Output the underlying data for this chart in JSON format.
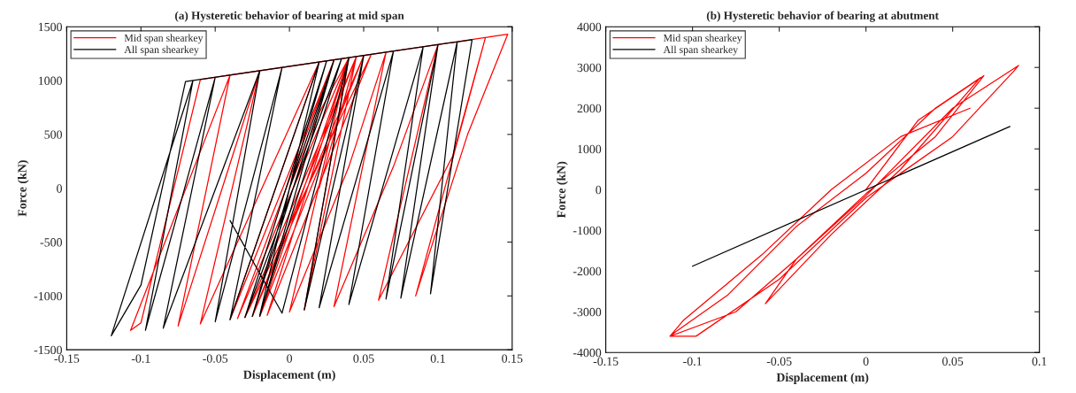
{
  "chart_data": [
    {
      "type": "line",
      "title": "(a) Hysteretic behavior of bearing at mid span",
      "xlabel": "Displacement (m)",
      "ylabel": "Force (kN)",
      "xlim": [
        -0.15,
        0.15
      ],
      "xticks": [
        -0.15,
        -0.1,
        -0.05,
        0,
        0.05,
        0.1,
        0.15
      ],
      "ylim": [
        -1500,
        1500
      ],
      "yticks": [
        -1500,
        -1000,
        -500,
        0,
        500,
        1000,
        1500
      ],
      "legend": "top left",
      "grid": false,
      "series": [
        {
          "name": "Mid span shearkey",
          "color": "#ff0000",
          "x": [
            0,
            0.02,
            0.04,
            -0.02,
            0.05,
            -0.025,
            0.045,
            -0.03,
            0.055,
            -0.015,
            0.04,
            -0.035,
            0.03,
            -0.04,
            0.02,
            -0.06,
            -0.02,
            -0.075,
            -0.04,
            -0.107,
            -0.1,
            -0.06,
            0.147,
            0.12,
            0.085,
            0.132,
            0.11,
            0.06,
            0.1,
            0.07,
            0.03,
            0.065,
            0.04,
            0.0,
            0.04,
            0.01,
            0.045,
            0.02
          ],
          "values": [
            0,
            700,
            1210,
            -1190,
            1230,
            -1190,
            1220,
            -1200,
            1240,
            -1180,
            1210,
            -1210,
            1190,
            -1220,
            1170,
            -1260,
            1090,
            -1280,
            1050,
            -1320,
            -1250,
            1010,
            1430,
            500,
            -1000,
            1400,
            300,
            -1040,
            1330,
            200,
            -1100,
            1260,
            200,
            -1150,
            1210,
            -1130,
            1220,
            0
          ]
        },
        {
          "name": "All span shearkey",
          "color": "#000000",
          "x": [
            0,
            0.03,
            -0.02,
            0.03,
            -0.025,
            0.025,
            -0.03,
            0.035,
            -0.02,
            0.02,
            -0.04,
            -0.005,
            -0.05,
            -0.02,
            -0.085,
            -0.05,
            -0.097,
            -0.065,
            -0.12,
            -0.1,
            -0.07,
            0.123,
            0.095,
            0.113,
            0.075,
            0.1,
            0.065,
            0.09,
            0.04,
            0.07,
            0.02,
            0.05,
            0.01,
            0.04,
            -0.005,
            -0.04
          ],
          "values": [
            0,
            1190,
            -1190,
            1190,
            -1190,
            1180,
            -1200,
            1200,
            -1180,
            1170,
            -1220,
            1120,
            -1240,
            1090,
            -1300,
            1030,
            -1320,
            1000,
            -1370,
            -900,
            990,
            1380,
            -980,
            1360,
            -1020,
            1330,
            -1030,
            1310,
            -1080,
            1270,
            -1110,
            1230,
            -1130,
            1210,
            -1160,
            -300
          ]
        }
      ]
    },
    {
      "type": "line",
      "title": "(b) Hysteretic behavior of bearing at abutment",
      "xlabel": "Displacement (m)",
      "ylabel": "Force (kN)",
      "xlim": [
        -0.15,
        0.1
      ],
      "xticks": [
        -0.15,
        -0.1,
        -0.05,
        0,
        0.05,
        0.1
      ],
      "ylim": [
        -4000,
        4000
      ],
      "yticks": [
        -4000,
        -3000,
        -2000,
        -1000,
        0,
        1000,
        2000,
        3000,
        4000
      ],
      "legend": "top left",
      "grid": false,
      "series": [
        {
          "name": "Mid span shearkey",
          "color": "#ff0000",
          "x": [
            0,
            0.03,
            0.068,
            0.04,
            0.0,
            -0.04,
            -0.075,
            -0.113,
            -0.11,
            -0.08,
            -0.04,
            0.0,
            0.04,
            0.066,
            0.02,
            -0.02,
            -0.058,
            -0.04,
            0.0,
            0.05,
            0.088,
            0.085,
            0.05,
            0.0,
            -0.05,
            -0.098,
            -0.113,
            -0.105,
            -0.06,
            -0.02,
            0.02,
            0.06
          ],
          "values": [
            0,
            1700,
            2800,
            1300,
            -100,
            -1700,
            -3000,
            -3600,
            -3500,
            -2600,
            -900,
            400,
            2000,
            2750,
            500,
            -1100,
            -2800,
            -1700,
            -150,
            2000,
            3050,
            2900,
            1300,
            -200,
            -2200,
            -3600,
            -3600,
            -3200,
            -1600,
            0,
            1300,
            2000
          ]
        },
        {
          "name": "All span shearkey",
          "color": "#000000",
          "x": [
            -0.1,
            0.083
          ],
          "values": [
            -1880,
            1550
          ]
        }
      ]
    }
  ]
}
